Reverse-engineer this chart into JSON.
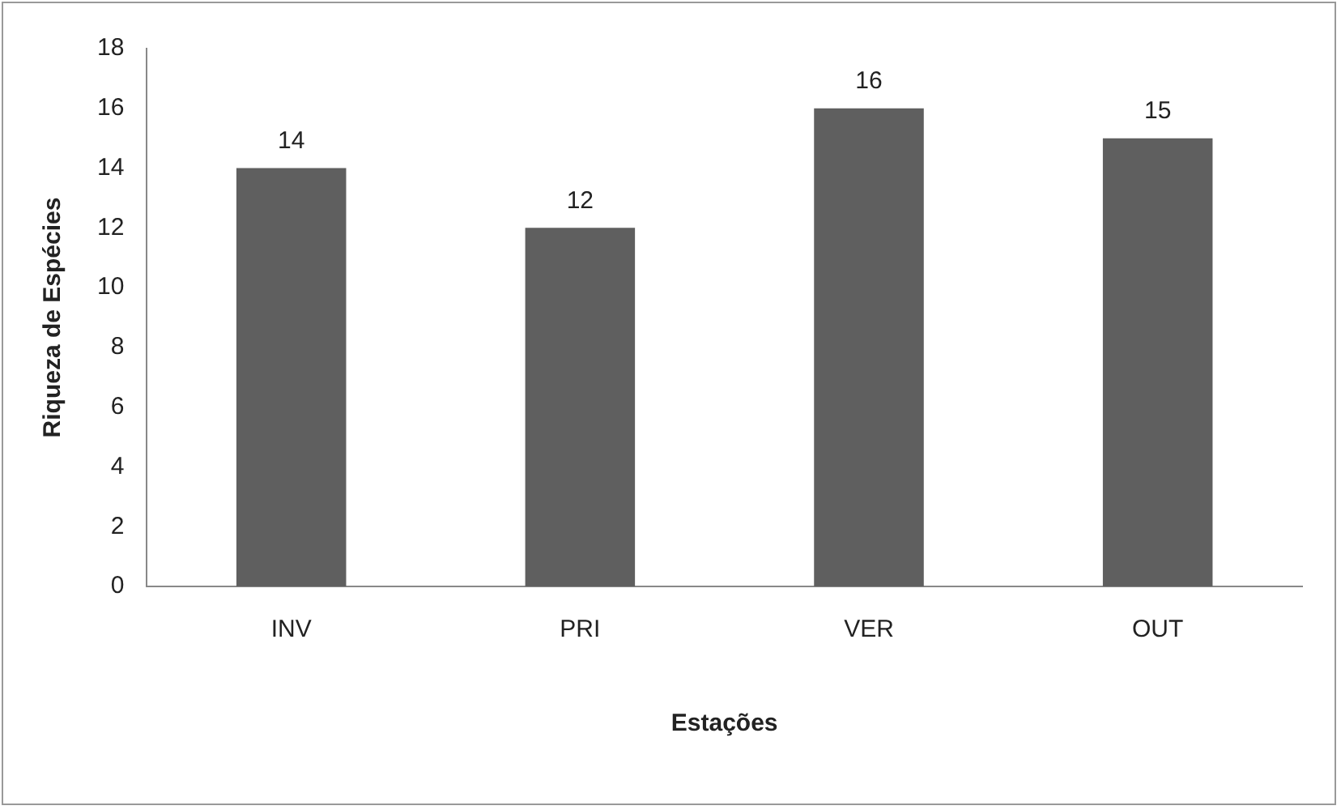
{
  "chart_data": {
    "type": "bar",
    "xlabel": "Estações",
    "ylabel": "Riqueza de Espécies",
    "categories": [
      "INV",
      "PRI",
      "VER",
      "OUT"
    ],
    "values": [
      14,
      12,
      16,
      15
    ],
    "color": "#5f5f5f",
    "ylim": [
      0,
      18
    ],
    "yticks": [
      0,
      2,
      4,
      6,
      8,
      10,
      12,
      14,
      16,
      18
    ],
    "grid": false,
    "legend": false,
    "data_labels": true
  }
}
